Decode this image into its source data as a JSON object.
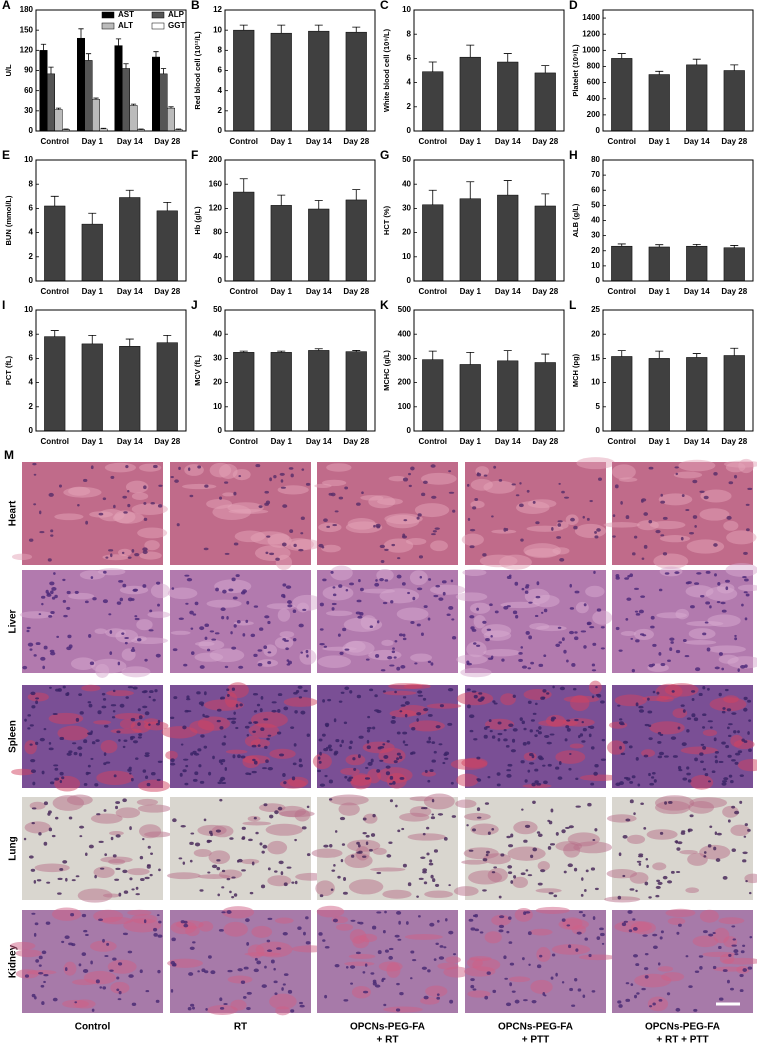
{
  "chart_data": [
    {
      "type": "bar",
      "panel": "A",
      "ylabel": "U/L",
      "categories": [
        "Control",
        "Day 1",
        "Day 14",
        "Day 28"
      ],
      "legend": "upper right",
      "series": [
        {
          "name": "AST",
          "color": "#000000",
          "values": [
            120,
            138,
            127,
            110
          ],
          "errors": [
            9,
            14,
            10,
            8
          ]
        },
        {
          "name": "ALP",
          "color": "#555555",
          "values": [
            85,
            105,
            93,
            85
          ],
          "errors": [
            10,
            10,
            7,
            8
          ]
        },
        {
          "name": "ALT",
          "color": "#bbbbbb",
          "values": [
            32,
            47,
            38,
            34
          ],
          "errors": [
            2,
            2,
            2,
            2
          ]
        },
        {
          "name": "GGT",
          "color": "#ffffff",
          "values": [
            2,
            3,
            2,
            2
          ],
          "errors": [
            1,
            1,
            1,
            1
          ]
        }
      ],
      "ylim": [
        0,
        180
      ],
      "yticks": [
        0,
        30,
        60,
        90,
        120,
        150,
        180
      ]
    },
    {
      "type": "bar",
      "panel": "B",
      "ylabel": "Red blood cell (10¹²/L)",
      "categories": [
        "Control",
        "Day 1",
        "Day 14",
        "Day 28"
      ],
      "color": "#404040",
      "values": [
        10.0,
        9.7,
        9.9,
        9.8
      ],
      "errors": [
        0.5,
        0.8,
        0.6,
        0.5
      ],
      "ylim": [
        0,
        12
      ],
      "yticks": [
        0,
        2,
        4,
        6,
        8,
        10,
        12
      ]
    },
    {
      "type": "bar",
      "panel": "C",
      "ylabel": "White blood cell (10⁹/L)",
      "categories": [
        "Control",
        "Day 1",
        "Day 14",
        "Day 28"
      ],
      "color": "#404040",
      "values": [
        4.9,
        6.1,
        5.7,
        4.8
      ],
      "errors": [
        0.8,
        1.0,
        0.7,
        0.6
      ],
      "ylim": [
        0,
        10
      ],
      "yticks": [
        0,
        2,
        4,
        6,
        8,
        10
      ]
    },
    {
      "type": "bar",
      "panel": "D",
      "ylabel": "Platelet (10⁹/L)",
      "categories": [
        "Control",
        "Day 1",
        "Day 14",
        "Day 28"
      ],
      "color": "#404040",
      "values": [
        900,
        700,
        820,
        750
      ],
      "errors": [
        60,
        40,
        70,
        70
      ],
      "ylim": [
        0,
        1500
      ],
      "yticks": [
        0,
        200,
        400,
        600,
        800,
        1000,
        1200,
        1400
      ]
    },
    {
      "type": "bar",
      "panel": "E",
      "ylabel": "BUN (mmol/L)",
      "categories": [
        "Control",
        "Day 1",
        "Day 14",
        "Day 28"
      ],
      "color": "#404040",
      "values": [
        6.2,
        4.7,
        6.9,
        5.8
      ],
      "errors": [
        0.8,
        0.9,
        0.6,
        0.7
      ],
      "ylim": [
        0,
        10
      ],
      "yticks": [
        0,
        2,
        4,
        6,
        8,
        10
      ]
    },
    {
      "type": "bar",
      "panel": "F",
      "ylabel": "Hb (g/L)",
      "categories": [
        "Control",
        "Day 1",
        "Day 14",
        "Day 28"
      ],
      "color": "#404040",
      "values": [
        147,
        125,
        119,
        134
      ],
      "errors": [
        22,
        17,
        14,
        17
      ],
      "ylim": [
        0,
        200
      ],
      "yticks": [
        0,
        40,
        80,
        120,
        160,
        200
      ]
    },
    {
      "type": "bar",
      "panel": "G",
      "ylabel": "HCT (%)",
      "categories": [
        "Control",
        "Day 1",
        "Day 14",
        "Day 28"
      ],
      "color": "#404040",
      "values": [
        31.5,
        34,
        35.5,
        31
      ],
      "errors": [
        6,
        7,
        6,
        5
      ],
      "ylim": [
        0,
        50
      ],
      "yticks": [
        0,
        10,
        20,
        30,
        40,
        50
      ]
    },
    {
      "type": "bar",
      "panel": "H",
      "ylabel": "ALB (g/L)",
      "categories": [
        "Control",
        "Day 1",
        "Day 14",
        "Day 28"
      ],
      "color": "#404040",
      "values": [
        23,
        22.5,
        23,
        22
      ],
      "errors": [
        1.5,
        1.5,
        1.2,
        1.5
      ],
      "ylim": [
        0,
        80
      ],
      "yticks": [
        0,
        10,
        20,
        30,
        40,
        50,
        60,
        70,
        80
      ]
    },
    {
      "type": "bar",
      "panel": "I",
      "ylabel": "PCT (fL)",
      "categories": [
        "Control",
        "Day 1",
        "Day 14",
        "Day 28"
      ],
      "color": "#404040",
      "values": [
        7.8,
        7.2,
        7.0,
        7.3
      ],
      "errors": [
        0.5,
        0.7,
        0.6,
        0.6
      ],
      "ylim": [
        0,
        10
      ],
      "yticks": [
        0,
        2,
        4,
        6,
        8,
        10
      ]
    },
    {
      "type": "bar",
      "panel": "J",
      "ylabel": "MCV (fL)",
      "categories": [
        "Control",
        "Day 1",
        "Day 14",
        "Day 28"
      ],
      "color": "#404040",
      "values": [
        32.5,
        32.5,
        33.3,
        32.8
      ],
      "errors": [
        0.5,
        0.5,
        0.7,
        0.5
      ],
      "ylim": [
        0,
        50
      ],
      "yticks": [
        0,
        10,
        20,
        30,
        40,
        50
      ]
    },
    {
      "type": "bar",
      "panel": "K",
      "ylabel": "MCHC (g/L)",
      "categories": [
        "Control",
        "Day 1",
        "Day 14",
        "Day 28"
      ],
      "color": "#404040",
      "values": [
        295,
        275,
        290,
        283
      ],
      "errors": [
        35,
        50,
        42,
        35
      ],
      "ylim": [
        0,
        500
      ],
      "yticks": [
        0,
        100,
        200,
        300,
        400,
        500
      ]
    },
    {
      "type": "bar",
      "panel": "L",
      "ylabel": "MCH (pg)",
      "categories": [
        "Control",
        "Day 1",
        "Day 14",
        "Day 28"
      ],
      "color": "#404040",
      "values": [
        15.4,
        15.0,
        15.2,
        15.6
      ],
      "errors": [
        1.2,
        1.5,
        0.8,
        1.5
      ],
      "ylim": [
        0,
        25
      ],
      "yticks": [
        0,
        5,
        10,
        15,
        20,
        25
      ]
    }
  ],
  "histology": {
    "panel": "M",
    "rows": [
      "Heart",
      "Liver",
      "Spleen",
      "Lung",
      "Kidney"
    ],
    "columns": [
      [
        "Control"
      ],
      [
        "RT"
      ],
      [
        "OPCNs-PEG-FA",
        "+ RT"
      ],
      [
        "OPCNs-PEG-FA",
        "+ PTT"
      ],
      [
        "OPCNs-PEG-FA",
        "+ RT + PTT"
      ]
    ]
  }
}
